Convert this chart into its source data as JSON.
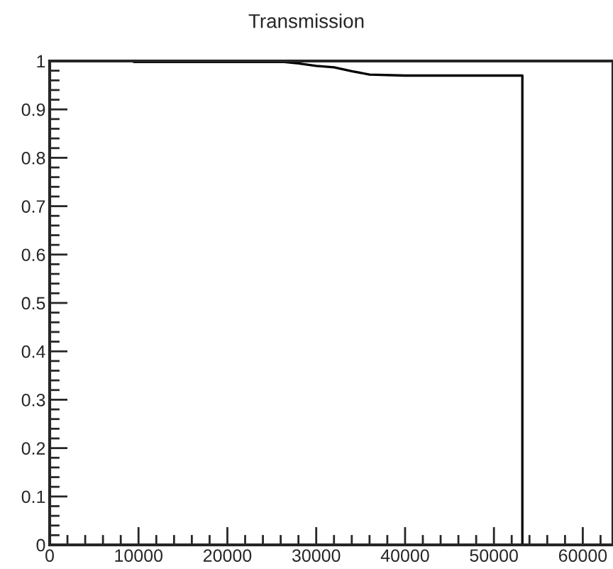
{
  "chart_data": {
    "type": "line",
    "title": "Transmission",
    "x": [
      0,
      9300,
      9500,
      26400,
      28000,
      30000,
      32000,
      34000,
      36000,
      40000,
      53200,
      53200,
      63400
    ],
    "series": [
      {
        "color": "#000000",
        "values": [
          1.0,
          1.0,
          0.998,
          0.998,
          0.995,
          0.99,
          0.987,
          0.979,
          0.972,
          0.97,
          0.97,
          0,
          0
        ]
      }
    ],
    "xlim": [
      0,
      63400
    ],
    "ylim": [
      0,
      1
    ],
    "xticks": [
      0,
      10000,
      20000,
      30000,
      40000,
      50000,
      60000
    ],
    "yticks": [
      0,
      0.1,
      0.2,
      0.3,
      0.4,
      0.5,
      0.6,
      0.7,
      0.8,
      0.9,
      1
    ],
    "grid": false,
    "legend": false,
    "marker": "none",
    "line_style": "solid"
  }
}
